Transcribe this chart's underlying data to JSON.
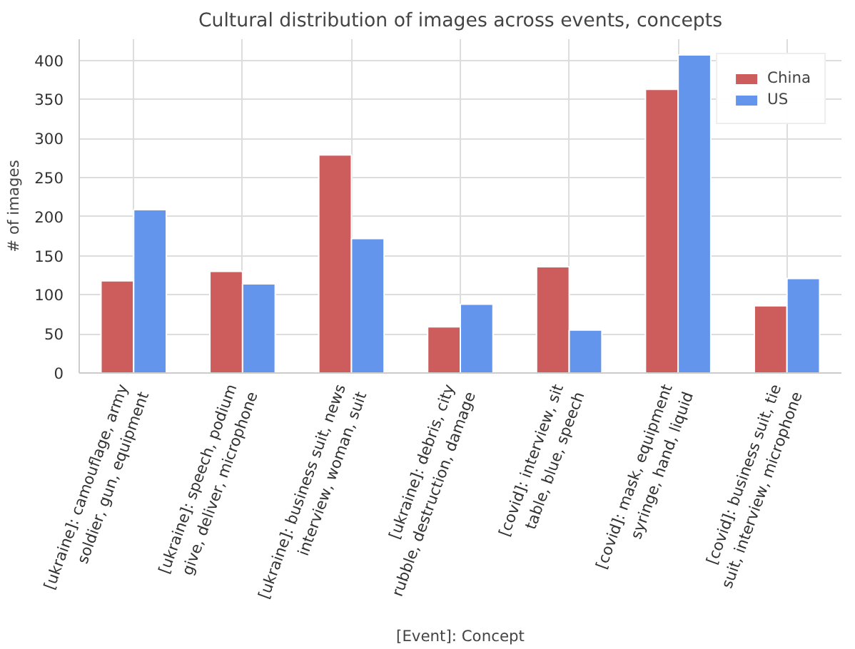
{
  "chart_data": {
    "type": "bar",
    "title": "Cultural distribution of images across events, concepts",
    "xlabel": "[Event]: Concept",
    "ylabel": "# of images",
    "categories": [
      "[ukraine]: camouflage, army\nsoldier, gun, equipment",
      "[ukraine]: speech, podium\ngive, deliver, microphone",
      "[ukraine]: business suit, news\ninterview, woman, suit",
      "[ukraine]: debris, city\nrubble, destruction, damage",
      "[covid]: interview, sit\ntable, blue, speech",
      "[covid]: mask, equipment\nsyringe, hand, liquid",
      "[covid]: business suit, tie\nsuit, interview, microphone"
    ],
    "series": [
      {
        "name": "China",
        "color": "#cd5c5c",
        "values": [
          118,
          130,
          279,
          59,
          136,
          363,
          86
        ]
      },
      {
        "name": "US",
        "color": "#6495ed",
        "values": [
          209,
          114,
          172,
          88,
          55,
          407,
          121
        ]
      }
    ],
    "ylim": [
      0,
      427
    ],
    "yticks": [
      0,
      50,
      100,
      150,
      200,
      250,
      300,
      350,
      400
    ],
    "grid": true,
    "legend": "top right"
  }
}
